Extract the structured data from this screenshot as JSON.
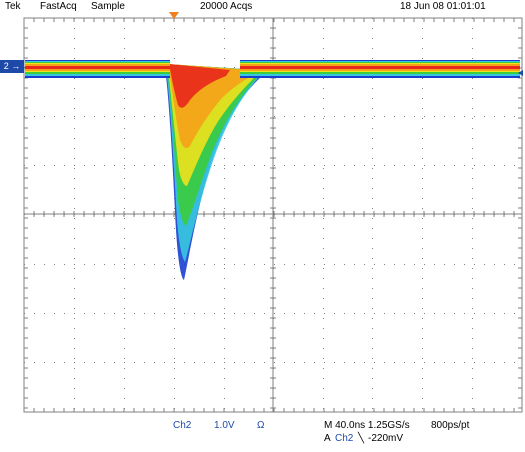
{
  "header": {
    "brand": "Tek",
    "mode": "FastAcq",
    "acq_type": "Sample",
    "acquisitions": "20000 Acqs",
    "datetime": "18 Jun 08 01:01:01"
  },
  "channel_marker": "2 →",
  "footer": {
    "channel": "Ch2",
    "volts_per_div": "1.0V",
    "impedance": "Ω",
    "timebase": "M 40.0ns  1.25GS/s",
    "record": "800ps/pt",
    "trigger_prefix": "A",
    "trigger_channel": "Ch2",
    "trigger_slope": "╲",
    "trigger_level": "-220mV"
  },
  "colors": {
    "grid": "#808080",
    "hot": "#e8261c",
    "warm": "#f5a218",
    "mid": "#f0e21c",
    "green": "#3ccc3c",
    "cyan": "#36c8e0",
    "cold": "#1a3fd0",
    "accent": "#1d4aa8",
    "trigger_marker": "#f07f1e"
  }
}
